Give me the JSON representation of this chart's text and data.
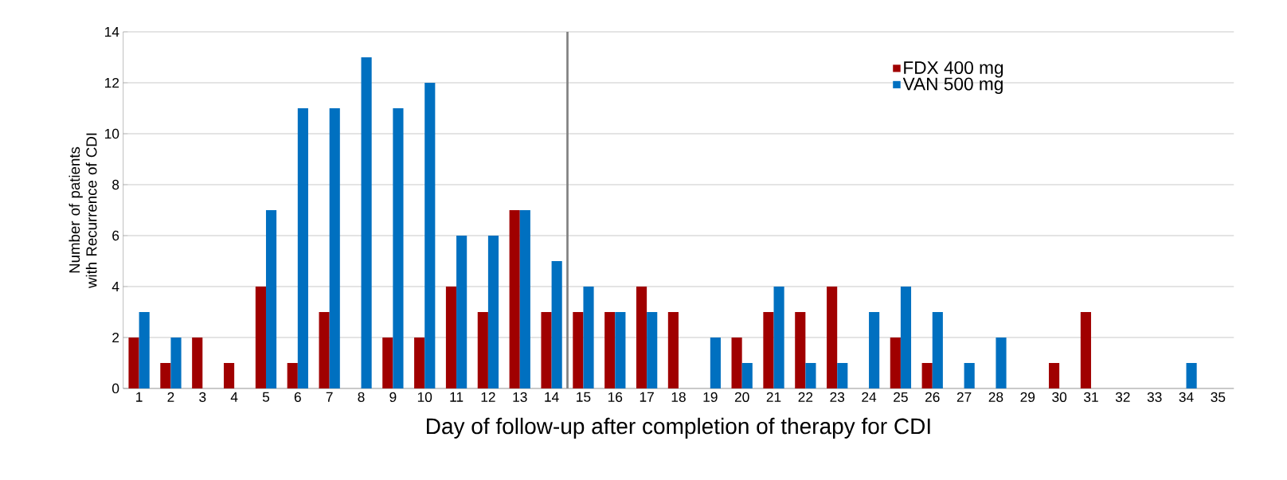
{
  "chart_data": {
    "type": "bar",
    "xlabel": "Day of follow-up after completion of therapy for CDI",
    "ylabel": "Number of patients with Recurrence of CDI",
    "x": [
      1,
      2,
      3,
      4,
      5,
      6,
      7,
      8,
      9,
      10,
      11,
      12,
      13,
      14,
      15,
      16,
      17,
      18,
      19,
      20,
      21,
      22,
      23,
      24,
      25,
      26,
      27,
      28,
      29,
      30,
      31,
      32,
      33,
      34,
      35
    ],
    "series": [
      {
        "name": "FDX 400 mg",
        "color": "#a00000",
        "values": [
          2,
          1,
          2,
          1,
          4,
          1,
          3,
          0,
          2,
          2,
          4,
          3,
          7,
          3,
          3,
          3,
          4,
          3,
          0,
          2,
          3,
          3,
          4,
          0,
          2,
          1,
          0,
          0,
          0,
          1,
          3,
          0,
          0,
          0,
          0
        ]
      },
      {
        "name": "VAN 500 mg",
        "color": "#0070c0",
        "values": [
          3,
          2,
          0,
          0,
          7,
          11,
          11,
          13,
          11,
          12,
          6,
          6,
          7,
          5,
          4,
          3,
          3,
          0,
          2,
          1,
          4,
          1,
          1,
          3,
          4,
          3,
          1,
          2,
          0,
          0,
          0,
          0,
          0,
          1,
          0
        ]
      }
    ],
    "xlim": [
      0.5,
      35.5
    ],
    "xticks": [
      1,
      2,
      3,
      4,
      5,
      6,
      7,
      8,
      9,
      10,
      11,
      12,
      13,
      14,
      15,
      16,
      17,
      18,
      19,
      20,
      21,
      22,
      23,
      24,
      25,
      26,
      27,
      28,
      29,
      30,
      31,
      32,
      33,
      34,
      35
    ],
    "ylim": [
      0,
      14
    ],
    "yticks": [
      0,
      2,
      4,
      6,
      8,
      10,
      12,
      14
    ],
    "ref_lines": [
      {
        "axis": "x",
        "value": 14.5,
        "color": "#808080"
      }
    ],
    "grid": "y",
    "legend": "top right"
  }
}
